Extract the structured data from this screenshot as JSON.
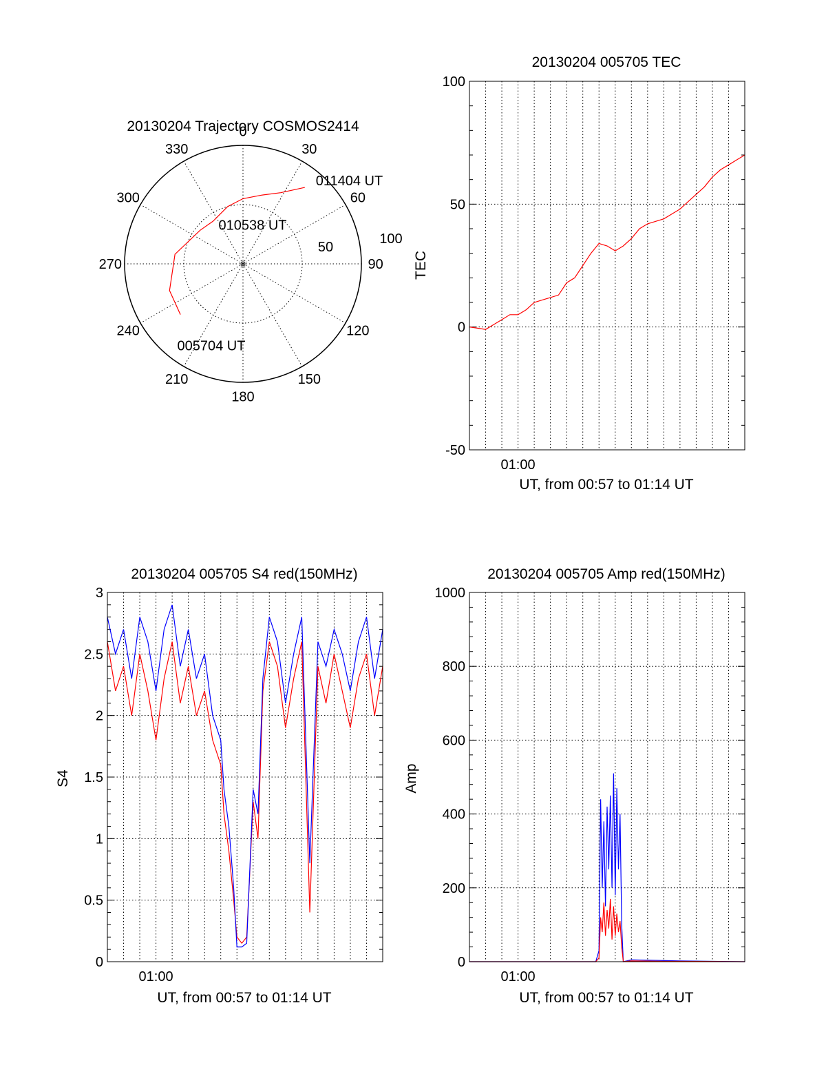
{
  "chart_data": [
    {
      "type": "polar",
      "title": "20130204 Trajectory COSMOS2414",
      "angle_labels": [
        "0",
        "30",
        "60",
        "90",
        "120",
        "150",
        "180",
        "210",
        "240",
        "270",
        "300",
        "330"
      ],
      "radius_labels": [
        "50",
        "100"
      ],
      "trajectory": {
        "color": "#ff0000",
        "points": [
          [
            231,
            68
          ],
          [
            250,
            66
          ],
          [
            278,
            58
          ],
          [
            308,
            46
          ],
          [
            325,
            44
          ],
          [
            345,
            50
          ],
          [
            0,
            55
          ],
          [
            15,
            60
          ],
          [
            28,
            68
          ],
          [
            39,
            83
          ]
        ],
        "annotations": [
          {
            "text": "005704 UT",
            "az": 220,
            "r": 90
          },
          {
            "text": "010538 UT",
            "az": 325,
            "r": 40
          },
          {
            "text": "011404 UT",
            "az": 40,
            "r": 92
          }
        ]
      }
    },
    {
      "type": "line",
      "title": "20130204 005705 TEC",
      "xlabel": "UT, from 00:57 to 01:14 UT",
      "ylabel": "TEC",
      "xlim": [
        0,
        17
      ],
      "ylim": [
        -50,
        100
      ],
      "yticks": [
        -50,
        0,
        50,
        100
      ],
      "xtick_label": "01:00",
      "xtick_value": 3,
      "series": [
        {
          "color": "#ff0000",
          "x": [
            0,
            0.5,
            1,
            1.5,
            2,
            2.5,
            3,
            3.5,
            4,
            4.5,
            5,
            5.5,
            6,
            6.5,
            7,
            7.5,
            8,
            8.5,
            9,
            9.5,
            10,
            10.5,
            11,
            11.5,
            12,
            12.5,
            13,
            13.5,
            14,
            14.5,
            15,
            15.5,
            16,
            16.5,
            17
          ],
          "values": [
            0,
            -0.5,
            -1,
            1,
            3,
            5,
            5,
            7,
            10,
            11,
            12,
            13,
            18,
            20,
            25,
            30,
            34,
            33,
            31,
            33,
            36,
            40,
            42,
            43,
            44,
            46,
            48,
            51,
            54,
            57,
            61,
            64,
            66,
            68,
            70
          ]
        }
      ]
    },
    {
      "type": "line",
      "title": "20130204 005705 S4 red(150MHz)",
      "xlabel": "UT, from 00:57 to 01:14 UT",
      "ylabel": "S4",
      "xlim": [
        0,
        17
      ],
      "ylim": [
        0,
        3
      ],
      "yticks": [
        0,
        0.5,
        1,
        1.5,
        2,
        2.5,
        3
      ],
      "ytick_labels": [
        "0",
        "0.5",
        "1",
        "1.5",
        "2",
        "2.5",
        "3"
      ],
      "xtick_label": "01:00",
      "xtick_value": 3,
      "series": [
        {
          "color": "#ff0000",
          "x": [
            0,
            0.5,
            1,
            1.5,
            2,
            2.5,
            3,
            3.5,
            4,
            4.5,
            5,
            5.5,
            6,
            6.5,
            7,
            7.2,
            7.5,
            7.8,
            8,
            8.3,
            8.6,
            9,
            9.3,
            9.6,
            10,
            10.5,
            11,
            11.5,
            12,
            12.5,
            13,
            13.5,
            14,
            14.5,
            15,
            15.5,
            16,
            16.5,
            17
          ],
          "values": [
            2.6,
            2.2,
            2.4,
            2.0,
            2.5,
            2.2,
            1.8,
            2.3,
            2.6,
            2.1,
            2.4,
            2.0,
            2.2,
            1.8,
            1.6,
            1.2,
            0.9,
            0.5,
            0.2,
            0.15,
            0.2,
            1.3,
            1.0,
            2.2,
            2.6,
            2.4,
            1.9,
            2.3,
            2.6,
            0.4,
            2.4,
            2.1,
            2.5,
            2.2,
            1.9,
            2.3,
            2.5,
            2.0,
            2.4
          ]
        },
        {
          "color": "#0000ff",
          "x": [
            0,
            0.5,
            1,
            1.5,
            2,
            2.5,
            3,
            3.5,
            4,
            4.5,
            5,
            5.5,
            6,
            6.5,
            7,
            7.2,
            7.5,
            7.8,
            8,
            8.3,
            8.6,
            9,
            9.3,
            9.6,
            10,
            10.5,
            11,
            11.5,
            12,
            12.5,
            13,
            13.5,
            14,
            14.5,
            15,
            15.5,
            16,
            16.5,
            17
          ],
          "values": [
            2.8,
            2.5,
            2.7,
            2.3,
            2.8,
            2.6,
            2.2,
            2.7,
            2.9,
            2.4,
            2.7,
            2.3,
            2.5,
            2.0,
            1.8,
            1.4,
            1.1,
            0.6,
            0.12,
            0.12,
            0.15,
            1.4,
            1.2,
            2.3,
            2.8,
            2.6,
            2.1,
            2.5,
            2.8,
            0.8,
            2.6,
            2.4,
            2.7,
            2.5,
            2.2,
            2.6,
            2.8,
            2.3,
            2.7
          ]
        }
      ]
    },
    {
      "type": "line",
      "title": "20130204 005705 Amp red(150MHz)",
      "xlabel": "UT, from 00:57 to 01:14 UT",
      "ylabel": "Amp",
      "xlim": [
        0,
        17
      ],
      "ylim": [
        0,
        1000
      ],
      "yticks": [
        0,
        200,
        400,
        600,
        800,
        1000
      ],
      "xtick_label": "01:00",
      "xtick_value": 3,
      "series": [
        {
          "color": "#0000ff",
          "x": [
            0,
            4,
            7.8,
            8.0,
            8.1,
            8.2,
            8.3,
            8.4,
            8.5,
            8.6,
            8.7,
            8.8,
            8.9,
            9.0,
            9.1,
            9.2,
            9.3,
            9.4,
            9.5,
            10,
            12,
            13,
            17
          ],
          "values": [
            0,
            0,
            0,
            30,
            440,
            200,
            380,
            150,
            420,
            250,
            450,
            200,
            510,
            180,
            470,
            250,
            400,
            100,
            0,
            5,
            3,
            2,
            0
          ]
        },
        {
          "color": "#ff0000",
          "x": [
            0,
            4,
            7.8,
            8.0,
            8.1,
            8.2,
            8.3,
            8.4,
            8.5,
            8.6,
            8.7,
            8.8,
            8.9,
            9.0,
            9.1,
            9.2,
            9.3,
            9.4,
            9.5,
            10,
            12,
            13,
            17
          ],
          "values": [
            0,
            0,
            0,
            10,
            120,
            80,
            160,
            70,
            140,
            90,
            170,
            60,
            150,
            70,
            130,
            80,
            110,
            40,
            0,
            2,
            1,
            1,
            0
          ]
        }
      ]
    }
  ]
}
